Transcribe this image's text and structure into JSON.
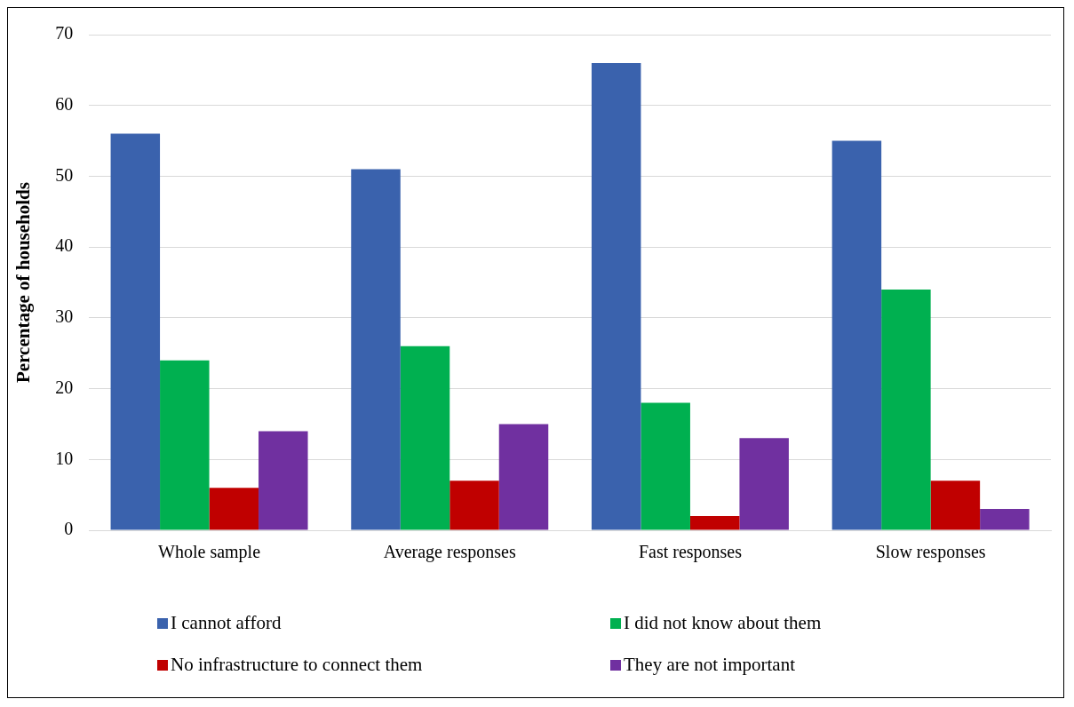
{
  "chart_data": {
    "type": "bar",
    "ylabel": "Percentage of households",
    "categories": [
      "Whole sample",
      "Average responses",
      "Fast responses",
      "Slow responses"
    ],
    "series": [
      {
        "name": "I cannot afford",
        "color": "#3a62ad",
        "values": [
          56,
          51,
          66,
          55
        ]
      },
      {
        "name": "I did not know about them",
        "color": "#00b050",
        "values": [
          24,
          26,
          18,
          34
        ]
      },
      {
        "name": "No infrastructure to connect them",
        "color": "#c00000",
        "values": [
          6,
          7,
          2,
          7
        ]
      },
      {
        "name": "They are not important",
        "color": "#7030a0",
        "values": [
          14,
          15,
          13,
          3
        ]
      }
    ],
    "ylim": [
      0,
      70
    ],
    "yticks": [
      0,
      10,
      20,
      30,
      40,
      50,
      60,
      70
    ],
    "grid": "y",
    "legend": "bottom"
  }
}
